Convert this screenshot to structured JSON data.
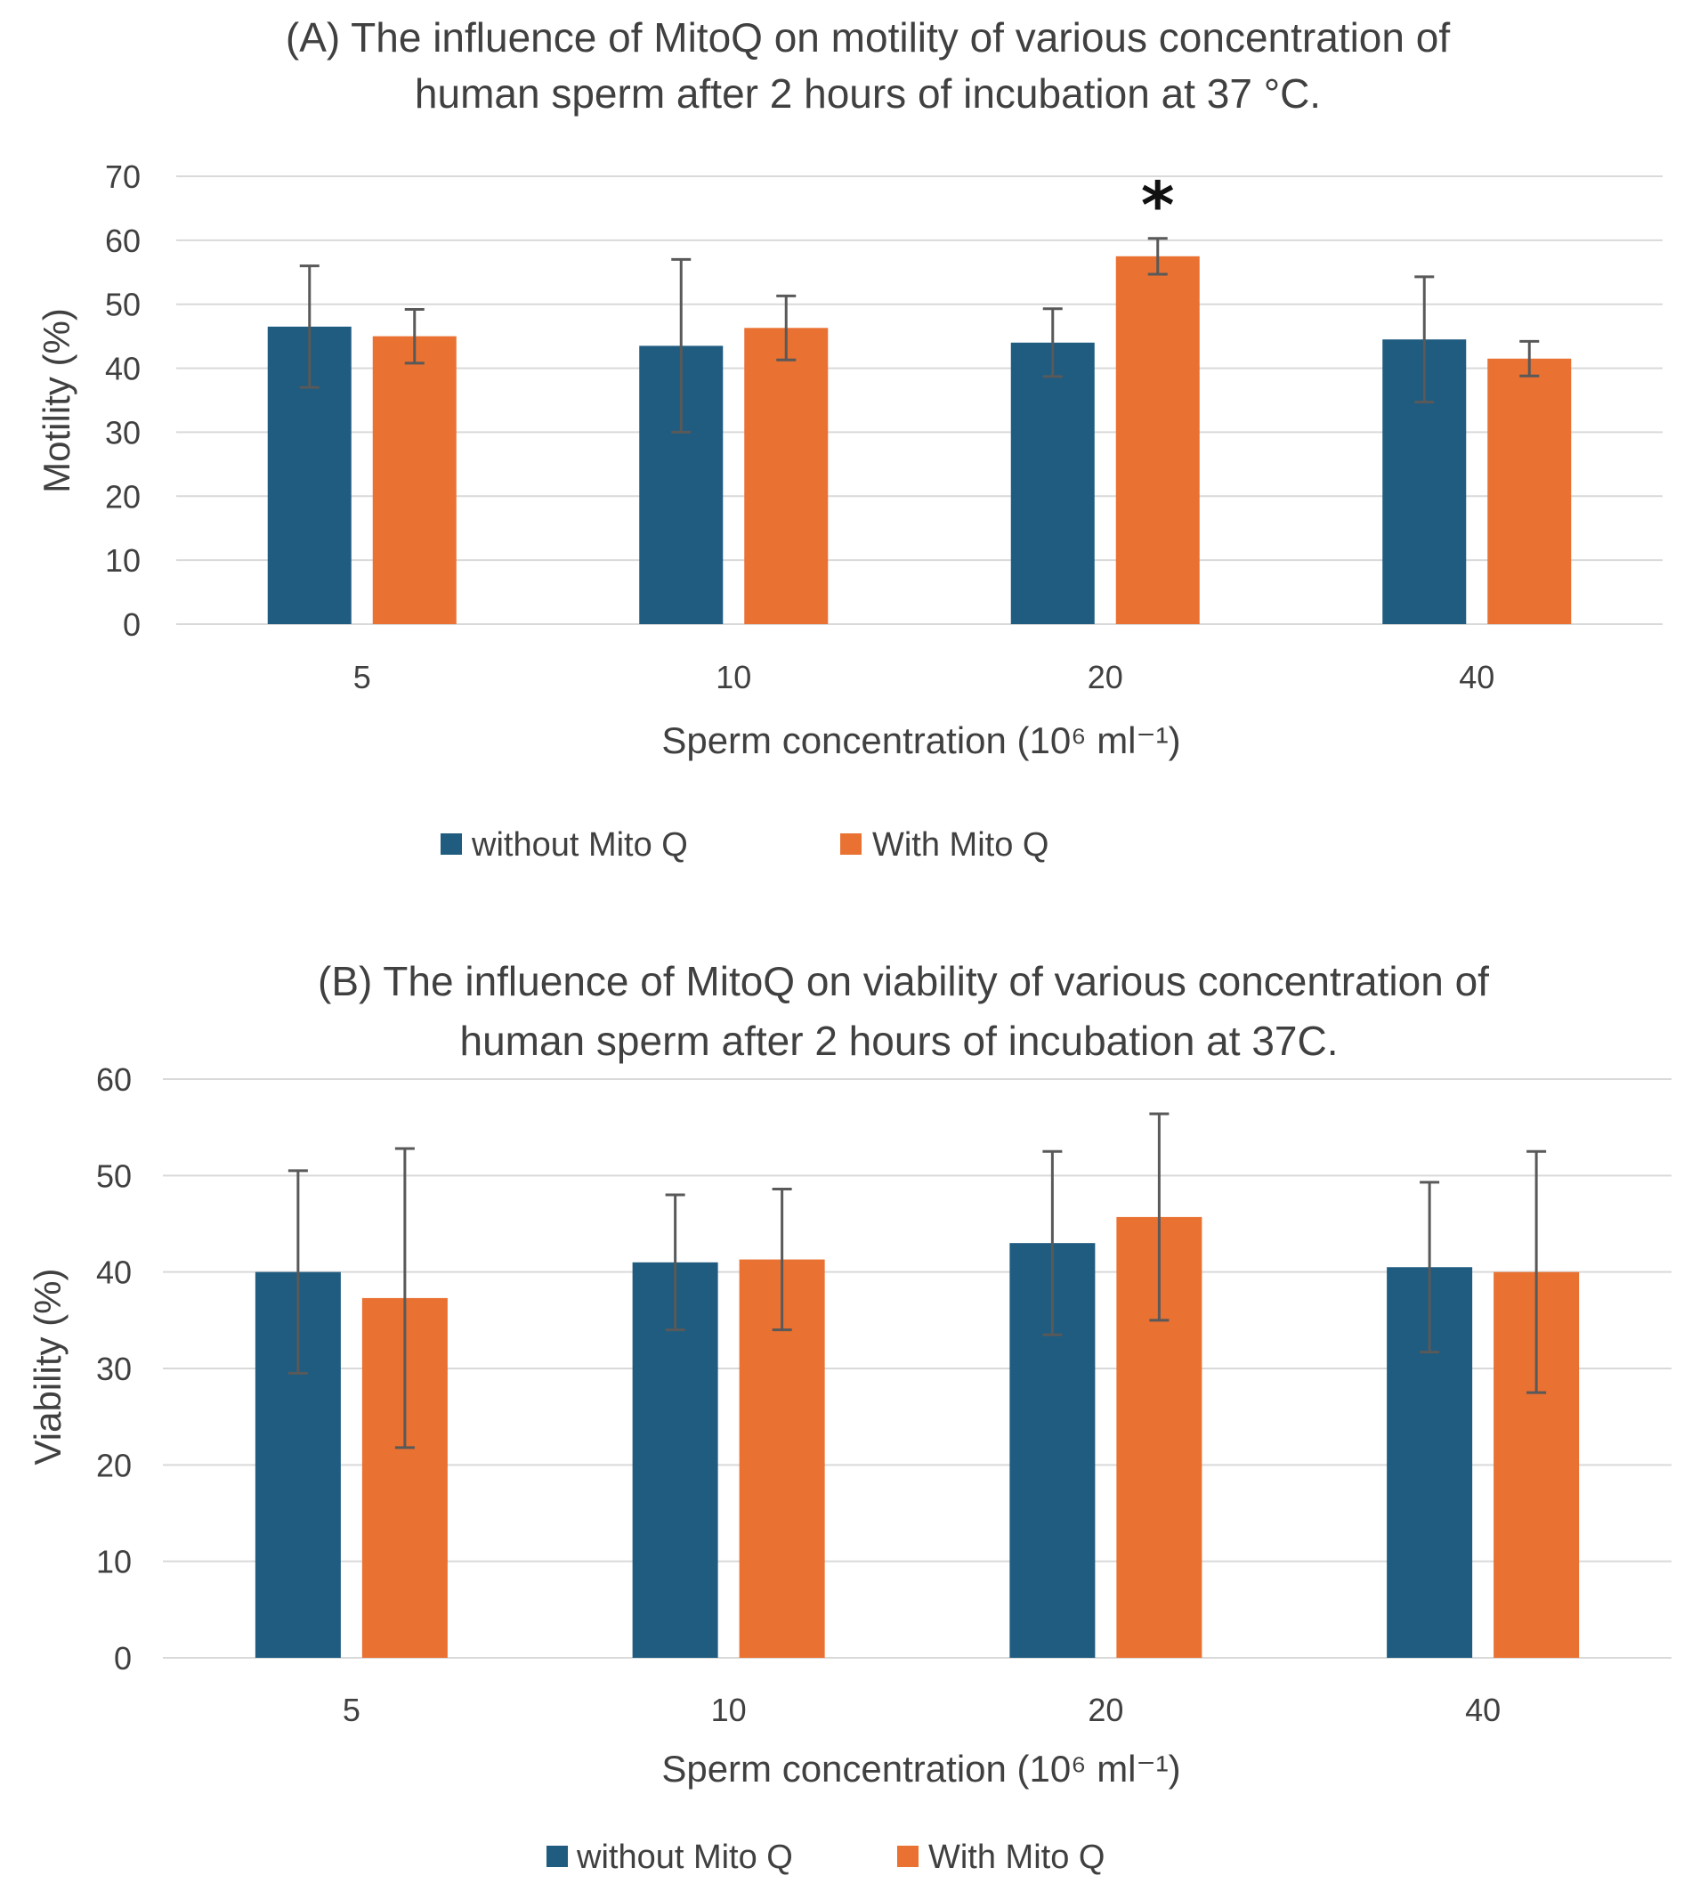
{
  "colors": {
    "without": "#1F5C80",
    "with": "#E97132"
  },
  "chart_data": [
    {
      "type": "bar",
      "title_line1": "(A) The influence of MitoQ on motility of various concentration of",
      "title_line2": "human sperm after 2 hours of incubation at 37 °C.",
      "xlabel": "Sperm concentration (10⁶ ml⁻¹)",
      "ylabel": "Motility (%)",
      "ylim": [
        0,
        70
      ],
      "ytick_step": 10,
      "categories": [
        "5",
        "10",
        "20",
        "40"
      ],
      "series": [
        {
          "name": "without Mito Q",
          "values": [
            46.5,
            43.5,
            44,
            44.5
          ],
          "errors": [
            9.5,
            13.5,
            5.3,
            9.8
          ]
        },
        {
          "name": "With Mito Q",
          "values": [
            45,
            46.3,
            57.5,
            41.5
          ],
          "errors": [
            4.2,
            5,
            2.8,
            2.7
          ]
        }
      ],
      "annotations": [
        {
          "text": "*",
          "category": "20",
          "series": "With Mito Q"
        }
      ],
      "grid": true,
      "legend": "bottom"
    },
    {
      "type": "bar",
      "title_line1": "(B) The influence of MitoQ on viability of various concentration of",
      "title_line2": "human sperm after 2 hours of incubation at 37C.",
      "xlabel": "Sperm concentration (10⁶ ml⁻¹)",
      "ylabel": "Viability (%)",
      "ylim": [
        0,
        60
      ],
      "ytick_step": 10,
      "categories": [
        "5",
        "10",
        "20",
        "40"
      ],
      "series": [
        {
          "name": "without Mito Q",
          "values": [
            40,
            41,
            43,
            40.5
          ],
          "errors": [
            10.5,
            7,
            9.5,
            8.8
          ]
        },
        {
          "name": "With Mito Q",
          "values": [
            37.3,
            41.3,
            45.7,
            40
          ],
          "errors": [
            15.5,
            7.3,
            10.7,
            12.5
          ]
        }
      ],
      "annotations": [],
      "grid": true,
      "legend": "bottom"
    }
  ]
}
